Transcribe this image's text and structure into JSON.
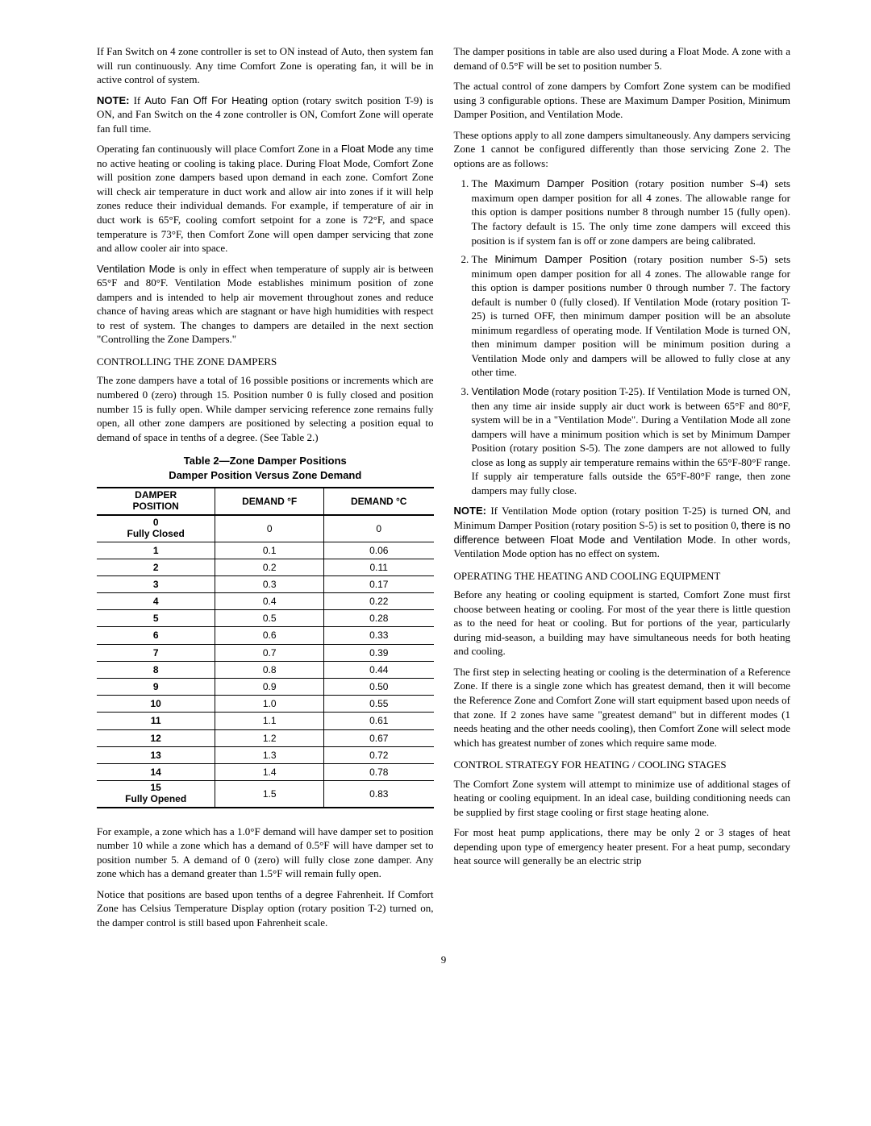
{
  "left": {
    "p1": "If Fan Switch on 4 zone controller is set to ON instead of Auto, then system fan will run continuously. Any time Comfort Zone is operating fan, it will be in active control of system.",
    "note_label1": "NOTE:",
    "note1_a": " If ",
    "note1_opt": "Auto Fan Off For Heating",
    "note1_b": " option (rotary switch position T-9) is ON, and Fan Switch on the 4 zone controller is ON, Comfort Zone will operate fan full time.",
    "p3_a": "Operating fan continuously will place Comfort Zone in a ",
    "float_mode": "Float Mode",
    "p3_b": " any time no active heating or cooling is taking place. During Float Mode, Comfort Zone will position zone dampers based upon demand in each zone. Comfort Zone will check air temperature in duct work and allow air into zones if it will help zones reduce their individual demands. For example, if temperature of air in duct work is 65°F, cooling comfort setpoint for a zone is 72°F, and space temperature is 73°F, then Comfort Zone will open damper servicing that zone and allow cooler air into space.",
    "vent_mode_label": "Ventilation Mode",
    "p4": " is only in effect when temperature of supply air is between 65°F and 80°F. Ventilation Mode establishes minimum position of zone dampers and is intended to help air movement throughout zones and reduce chance of having areas which are stagnant or have high humidities with respect to rest of system. The changes to dampers are detailed in the next section \"Controlling the Zone Dampers.\"",
    "h1": "CONTROLLING THE ZONE DAMPERS",
    "p5": "The zone dampers have a total of 16 possible positions or increments which are numbered 0 (zero) through 15. Position number 0 is fully closed and position number 15 is fully open. While damper servicing reference zone remains fully open, all other zone dampers are positioned by selecting a position equal to demand of space in tenths of a degree. (See Table 2.)",
    "tableCaption1": "Table 2—Zone Damper Positions",
    "tableCaption2": "Damper Position Versus Zone Demand",
    "th1a": "DAMPER",
    "th1b": "POSITION",
    "th2": "DEMAND °F",
    "th3": "DEMAND °C",
    "rows": [
      {
        "pos": "0",
        "posSub": "Fully Closed",
        "f": "0",
        "c": "0"
      },
      {
        "pos": "1",
        "f": "0.1",
        "c": "0.06"
      },
      {
        "pos": "2",
        "f": "0.2",
        "c": "0.11"
      },
      {
        "pos": "3",
        "f": "0.3",
        "c": "0.17"
      },
      {
        "pos": "4",
        "f": "0.4",
        "c": "0.22"
      },
      {
        "pos": "5",
        "f": "0.5",
        "c": "0.28"
      },
      {
        "pos": "6",
        "f": "0.6",
        "c": "0.33"
      },
      {
        "pos": "7",
        "f": "0.7",
        "c": "0.39"
      },
      {
        "pos": "8",
        "f": "0.8",
        "c": "0.44"
      },
      {
        "pos": "9",
        "f": "0.9",
        "c": "0.50"
      },
      {
        "pos": "10",
        "f": "1.0",
        "c": "0.55"
      },
      {
        "pos": "11",
        "f": "1.1",
        "c": "0.61"
      },
      {
        "pos": "12",
        "f": "1.2",
        "c": "0.67"
      },
      {
        "pos": "13",
        "f": "1.3",
        "c": "0.72"
      },
      {
        "pos": "14",
        "f": "1.4",
        "c": "0.78"
      },
      {
        "pos": "15",
        "posSub": "Fully Opened",
        "f": "1.5",
        "c": "0.83"
      }
    ],
    "p6": "For example, a zone which has a 1.0°F demand will have damper set to position number 10 while a zone which has a demand of 0.5°F will have damper set to position number 5. A demand of 0 (zero) will fully close zone damper. Any zone which has a demand greater than 1.5°F will remain fully open.",
    "p7": "Notice that positions are based upon tenths of a degree Fahrenheit. If Comfort Zone has Celsius Temperature Display option (rotary position T-2) turned on, the damper control is still based upon Fahrenheit scale."
  },
  "right": {
    "p1": "The damper positions in table are also used during a Float Mode. A zone with a demand of 0.5°F will be set to position number 5.",
    "p2": "The actual control of zone dampers by Comfort Zone system can be modified using 3 configurable options. These are Maximum Damper Position, Minimum Damper Position, and Ventilation Mode.",
    "p3": "These options apply to all zone dampers simultaneously. Any dampers servicing Zone 1 cannot be configured differently than those servicing Zone 2. The options are as follows:",
    "li1_a": "The ",
    "li1_label": "Maximum Damper Position",
    "li1_b": " (rotary position number S-4) sets maximum open damper position for all 4 zones. The allowable range for this option is damper positions number 8 through number 15 (fully open). The factory default is 15. The only time zone dampers will exceed this position is if system fan is off or zone dampers are being calibrated.",
    "li2_a": "The ",
    "li2_label": "Minimum Damper Position",
    "li2_b": " (rotary position number S-5) sets minimum open damper position for all 4 zones. The allowable range for this option is damper positions number 0 through number 7. The factory default is number 0 (fully closed). If Ventilation Mode (rotary position T-25) is turned OFF, then minimum damper position will be an absolute minimum regardless of operating mode. If Ventilation Mode is turned ON, then minimum damper position will be minimum position during a Ventilation Mode only and dampers will be allowed to fully close at any other time.",
    "li3_label": "Ventilation Mode",
    "li3_b": " (rotary position T-25). If Ventilation Mode is turned ON, then any time air inside supply air duct work is between 65°F and 80°F, system will be in a \"Ventilation Mode\". During a Ventilation Mode all zone dampers will have a minimum position which is set by Minimum Damper Position (rotary position S-5). The zone dampers are not allowed to fully close as long as supply air temperature remains within the 65°F-80°F range. If supply air temperature falls outside the 65°F-80°F range, then zone dampers may fully close.",
    "note_label": "NOTE:",
    "note_a": " If Ventilation Mode option (rotary position T-25) is turned ",
    "note_on": "ON",
    "note_b": ", and Minimum Damper Position (rotary position S-5) is set to position 0, ",
    "note_em": "there is no difference between Float Mode and Ventilation Mode.",
    "note_c": " In other words, Ventilation Mode option has no effect on system.",
    "h2": "OPERATING THE HEATING AND COOLING EQUIPMENT",
    "p5": "Before any heating or cooling equipment is started, Comfort Zone must first choose between heating or cooling. For most of the year there is little question as to the need for heat or cooling. But for portions of the year, particularly during mid-season, a building may have simultaneous needs for both heating and cooling.",
    "p6": "The first step in selecting heating or cooling is the determination of a Reference Zone. If there is a single zone which has greatest demand, then it will become the Reference Zone and Comfort Zone will start equipment based upon needs of that zone. If 2 zones have same \"greatest demand\" but in different modes (1 needs heating and the other needs cooling), then Comfort Zone will select mode which has greatest number of zones which require same mode.",
    "h3": "CONTROL STRATEGY FOR HEATING / COOLING STAGES",
    "p7": "The Comfort Zone system will attempt to minimize use of additional stages of heating or cooling equipment. In an ideal case, building conditioning needs can be supplied by first stage cooling or first stage heating alone.",
    "p8": "For most heat pump applications, there may be only 2 or 3 stages of heat depending upon type of emergency heater present. For a heat pump, secondary heat source will generally be an electric strip"
  },
  "pagenum": "9"
}
